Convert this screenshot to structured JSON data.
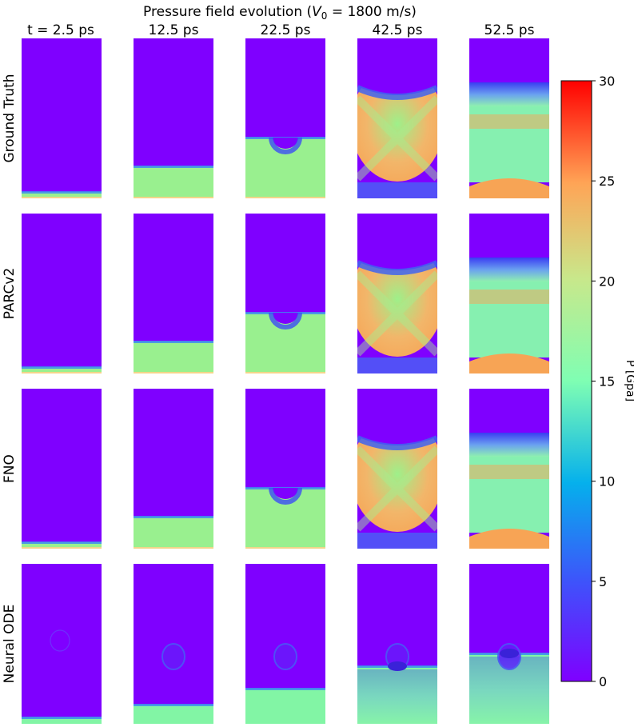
{
  "chart_data": {
    "type": "heatmap",
    "title_prefix": "Pressure field evolution (",
    "title_var": "V",
    "title_sub": "0",
    "title_suffix": " = 1800 m/s)",
    "time_labels": [
      "t = 2.5 ps",
      "12.5 ps",
      "22.5 ps",
      "42.5 ps",
      "52.5 ps"
    ],
    "times_ps": [
      2.5,
      12.5,
      22.5,
      42.5,
      52.5
    ],
    "rows": [
      "Ground Truth",
      "PARCv2",
      "FNO",
      "Neural ODE"
    ],
    "colorbar": {
      "label": "P [Gpa]",
      "vmin": 0,
      "vmax": 30,
      "ticks": [
        0,
        5,
        10,
        15,
        20,
        25,
        30
      ],
      "tick_labels": [
        "0",
        "5",
        "10",
        "15",
        "20",
        "25",
        "30"
      ],
      "colormap": "rainbow"
    },
    "colors": {
      "background_field": "#7f00ff",
      "compressed_low": "#99f08f",
      "compressed_neural": "#82f5a5",
      "high_pressure": "#f7a455"
    },
    "front_fraction": {
      "Ground Truth": [
        0.96,
        0.8,
        0.62,
        null,
        null
      ],
      "PARCv2": [
        0.96,
        0.8,
        0.62,
        null,
        null
      ],
      "FNO": [
        0.96,
        0.8,
        0.62,
        null,
        null
      ],
      "Neural ODE": [
        0.96,
        0.88,
        0.78,
        0.64,
        0.56
      ]
    }
  }
}
